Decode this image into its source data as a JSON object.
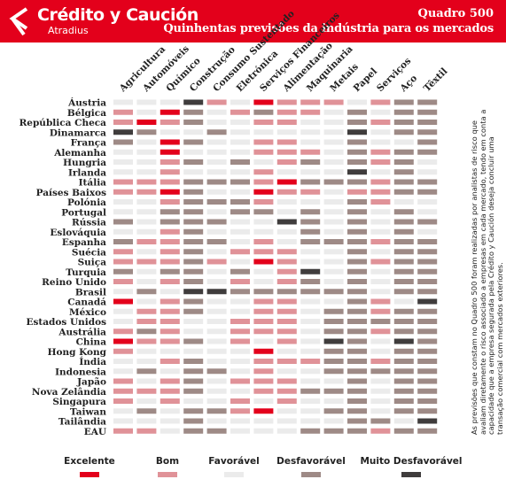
{
  "header": {
    "brand": "Crédito y Caución",
    "sub_brand": "Atradius",
    "title": "Quadro 500",
    "subtitle": "Quinhentas previsões da indústria para os mercados"
  },
  "colors": {
    "header_red": "#e3001b",
    "levels": {
      "1": "#e3001b",
      "2": "#e09298",
      "3": "#ebebeb",
      "4": "#9e8a86",
      "5": "#3f3c3c"
    }
  },
  "footnote": "As previsões que constam no Quadro 500 foram realizadas por analistas de risco que avaliam diretamente o risco associado a empresas em cada mercado, tendo em conta a capacidade que a empresa segurada pela Crédito y Caución deseja concluir uma transação comercial com mercados exteriores.",
  "chart_data": {
    "type": "heatmap",
    "title": "Quadro 500",
    "subtitle": "Quinhentas previsões da indústria para os mercados",
    "scale": {
      "1": "Excelente",
      "2": "Bom",
      "3": "Favorável",
      "4": "Desfavorável",
      "5": "Muito Desfavorável"
    },
    "legend": [
      "Excelente",
      "Bom",
      "Favorável",
      "Desfavorável",
      "Muito Desfavorável"
    ],
    "columns": [
      "Agricultura",
      "Automóveis",
      "Químico",
      "Construção",
      "Consumo Sustentado",
      "Eletrónica",
      "Serviços Financeiros",
      "Alimentação",
      "Maquinaria",
      "Metais",
      "Papel",
      "Serviços",
      "Aço",
      "Têxtil"
    ],
    "rows": [
      "Áustria",
      "Bélgica",
      "República Checa",
      "Dinamarca",
      "França",
      "Alemanha",
      "Hungria",
      "Irlanda",
      "Itália",
      "Países Baixos",
      "Polónia",
      "Portugal",
      "Rússia",
      "Eslováquia",
      "Espanha",
      "Suécia",
      "Suiça",
      "Turquia",
      "Reino Unido",
      "Brasil",
      "Canadá",
      "México",
      "Estados Unidos",
      "Austrália",
      "China",
      "Hong Kong",
      "Índia",
      "Indonesia",
      "Japão",
      "Nova Zelândia",
      "Singapura",
      "Taiwan",
      "Tailândia",
      "EAU"
    ],
    "values": [
      [
        3,
        3,
        3,
        5,
        2,
        3,
        1,
        2,
        2,
        2,
        3,
        2,
        4,
        4
      ],
      [
        2,
        3,
        1,
        4,
        3,
        2,
        4,
        2,
        2,
        3,
        4,
        3,
        4,
        4
      ],
      [
        2,
        1,
        2,
        4,
        3,
        3,
        2,
        2,
        3,
        3,
        4,
        2,
        4,
        4
      ],
      [
        5,
        4,
        3,
        3,
        4,
        3,
        3,
        3,
        3,
        3,
        5,
        3,
        4,
        4
      ],
      [
        4,
        3,
        1,
        4,
        3,
        3,
        2,
        2,
        3,
        3,
        4,
        3,
        3,
        4
      ],
      [
        3,
        3,
        1,
        3,
        3,
        3,
        2,
        2,
        2,
        3,
        4,
        2,
        4,
        4
      ],
      [
        3,
        3,
        2,
        4,
        3,
        4,
        3,
        2,
        4,
        3,
        4,
        2,
        4,
        3
      ],
      [
        3,
        3,
        2,
        3,
        3,
        3,
        2,
        3,
        3,
        3,
        5,
        3,
        4,
        3
      ],
      [
        2,
        2,
        2,
        4,
        4,
        4,
        2,
        1,
        4,
        4,
        4,
        2,
        4,
        4
      ],
      [
        2,
        2,
        1,
        4,
        3,
        3,
        1,
        2,
        2,
        3,
        2,
        2,
        4,
        4
      ],
      [
        3,
        3,
        2,
        4,
        4,
        4,
        2,
        3,
        3,
        3,
        4,
        2,
        3,
        3
      ],
      [
        3,
        3,
        4,
        4,
        3,
        4,
        4,
        3,
        4,
        3,
        4,
        3,
        4,
        3
      ],
      [
        4,
        3,
        4,
        4,
        4,
        3,
        3,
        5,
        4,
        3,
        4,
        3,
        4,
        4
      ],
      [
        3,
        3,
        2,
        4,
        3,
        3,
        3,
        3,
        4,
        3,
        4,
        3,
        4,
        3
      ],
      [
        4,
        2,
        2,
        4,
        4,
        3,
        2,
        3,
        4,
        4,
        4,
        2,
        4,
        4
      ],
      [
        2,
        3,
        2,
        4,
        3,
        2,
        2,
        2,
        3,
        3,
        4,
        3,
        4,
        4
      ],
      [
        2,
        2,
        2,
        4,
        2,
        3,
        1,
        2,
        3,
        3,
        4,
        2,
        4,
        4
      ],
      [
        4,
        3,
        4,
        4,
        3,
        4,
        3,
        2,
        5,
        3,
        4,
        3,
        4,
        4
      ],
      [
        2,
        3,
        2,
        4,
        3,
        2,
        3,
        2,
        4,
        3,
        4,
        3,
        4,
        4
      ],
      [
        3,
        4,
        3,
        5,
        5,
        4,
        4,
        4,
        4,
        4,
        4,
        3,
        4,
        4
      ],
      [
        1,
        3,
        2,
        4,
        3,
        3,
        2,
        2,
        3,
        3,
        4,
        2,
        3,
        5
      ],
      [
        3,
        2,
        2,
        4,
        3,
        3,
        2,
        2,
        3,
        4,
        4,
        2,
        4,
        4
      ],
      [
        3,
        2,
        2,
        3,
        3,
        2,
        2,
        2,
        3,
        4,
        4,
        4,
        4,
        4
      ],
      [
        2,
        4,
        2,
        3,
        3,
        2,
        2,
        2,
        3,
        4,
        4,
        2,
        4,
        4
      ],
      [
        1,
        2,
        2,
        4,
        3,
        2,
        3,
        2,
        3,
        5,
        4,
        3,
        5,
        4
      ],
      [
        2,
        3,
        3,
        3,
        3,
        3,
        1,
        3,
        3,
        4,
        4,
        3,
        4,
        4
      ],
      [
        3,
        3,
        2,
        4,
        3,
        3,
        2,
        2,
        2,
        4,
        4,
        2,
        4,
        4
      ],
      [
        3,
        4,
        3,
        4,
        4,
        3,
        2,
        3,
        3,
        4,
        4,
        4,
        4,
        4
      ],
      [
        2,
        3,
        2,
        4,
        3,
        2,
        2,
        2,
        3,
        3,
        4,
        3,
        4,
        4
      ],
      [
        2,
        2,
        2,
        4,
        3,
        3,
        2,
        2,
        4,
        4,
        4,
        3,
        4,
        4
      ],
      [
        2,
        3,
        2,
        3,
        3,
        2,
        3,
        2,
        3,
        3,
        4,
        3,
        4,
        4
      ],
      [
        3,
        4,
        3,
        4,
        4,
        2,
        1,
        3,
        3,
        4,
        4,
        3,
        4,
        4
      ],
      [
        3,
        3,
        3,
        4,
        3,
        3,
        3,
        3,
        3,
        3,
        4,
        4,
        3,
        5
      ],
      [
        2,
        2,
        3,
        4,
        4,
        3,
        3,
        3,
        4,
        4,
        4,
        2,
        4,
        4
      ]
    ]
  }
}
